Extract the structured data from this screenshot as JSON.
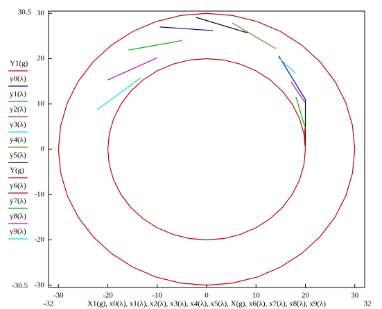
{
  "chart_data": {
    "type": "line",
    "x_label": "X1(g), x0(λ), x1(λ), x2(λ), x3(λ), x4(λ), x5(λ), X(g), x6(λ), x7(λ), x8(λ), x9(λ)",
    "xlim": [
      -32,
      32
    ],
    "ylim": [
      -30.5,
      30.5
    ],
    "xticks": [
      -30,
      -20,
      -10,
      0,
      10,
      20,
      30
    ],
    "yticks": [
      -30,
      -20,
      -10,
      0,
      10,
      20,
      30
    ],
    "legend": "left",
    "series": [
      {
        "name": "Y1(g)",
        "color": "#c00000",
        "x": [
          30,
          29.54,
          28.19,
          25.98,
          22.98,
          19.28,
          15,
          10.26,
          5.21,
          0,
          -5.21,
          -10.26,
          -15,
          -19.28,
          -22.98,
          -25.98,
          -28.19,
          -29.54,
          -30,
          -29.54,
          -28.19,
          -25.98,
          -22.98,
          -19.28,
          -15,
          -10.26,
          -5.21,
          0,
          5.21,
          10.26,
          15,
          19.28,
          22.98,
          25.98,
          28.19,
          29.54,
          30
        ],
        "values": [
          0,
          5.21,
          10.26,
          15,
          19.28,
          22.98,
          25.98,
          28.19,
          29.54,
          30,
          29.54,
          28.19,
          25.98,
          22.98,
          19.28,
          15,
          10.26,
          5.21,
          0,
          -5.21,
          -10.26,
          -15,
          -19.28,
          -22.98,
          -25.98,
          -28.19,
          -29.54,
          -30,
          -29.54,
          -28.19,
          -25.98,
          -22.98,
          -19.28,
          -15,
          -10.26,
          -5.21,
          0
        ]
      },
      {
        "name": "y0(λ)",
        "color": "#0000a0",
        "x": [
          -9.5,
          1.3,
          null,
          14.6,
          20
        ],
        "values": [
          27,
          26.2,
          null,
          20.6,
          11
        ]
      },
      {
        "name": "y1(λ)",
        "color": "#00b000",
        "x": [
          -15.8,
          -5
        ],
        "values": [
          21.9,
          24
        ]
      },
      {
        "name": "y2(λ)",
        "color": "#c000c0",
        "x": [
          -20,
          -10
        ],
        "values": [
          15.3,
          20.2
        ]
      },
      {
        "name": "y3(λ)",
        "color": "#00e0e0",
        "x": [
          -22.2,
          -13.3
        ],
        "values": [
          8.7,
          15.8
        ]
      },
      {
        "name": "y4(λ)",
        "color": "#808000",
        "x": [
          5.2,
          14
        ],
        "values": [
          27.9,
          22.2
        ]
      },
      {
        "name": "y5(λ)",
        "color": "#000000",
        "x": [
          -2.1,
          8.3,
          null,
          20,
          20
        ],
        "values": [
          29.1,
          25.7,
          null,
          11,
          0.8
        ]
      },
      {
        "name": "Y(g)",
        "color": "#c00000",
        "x": [
          20,
          19.7,
          18.79,
          17.32,
          15.32,
          12.86,
          10,
          6.84,
          3.47,
          0,
          -3.47,
          -6.84,
          -10,
          -12.86,
          -15.32,
          -17.32,
          -18.79,
          -19.7,
          -20,
          -19.7,
          -18.79,
          -17.32,
          -15.32,
          -12.86,
          -10,
          -6.84,
          -3.47,
          0,
          3.47,
          6.84,
          10,
          12.86,
          15.32,
          17.32,
          18.79,
          19.7,
          20
        ],
        "values": [
          0,
          3.47,
          6.84,
          10,
          12.86,
          15.32,
          17.32,
          18.79,
          19.7,
          20,
          19.7,
          18.79,
          17.32,
          15.32,
          12.86,
          10,
          6.84,
          3.47,
          0,
          -3.47,
          -6.84,
          -10,
          -12.86,
          -15.32,
          -17.32,
          -18.79,
          -19.7,
          -20,
          -19.7,
          -18.79,
          -17.32,
          -15.32,
          -12.86,
          -10,
          -6.84,
          -3.47,
          0
        ]
      },
      {
        "name": "y6(λ)",
        "color": "#c00000",
        "x": [
          19.9,
          19.9
        ],
        "values": [
          4.6,
          1
        ]
      },
      {
        "name": "y7(λ)",
        "color": "#00b000",
        "x": [
          18.1,
          20
        ],
        "values": [
          11.5,
          4.6
        ]
      },
      {
        "name": "y8(λ)",
        "color": "#c000c0",
        "x": [
          17.1,
          19.9
        ],
        "values": [
          14.9,
          10.4
        ]
      },
      {
        "name": "y9(λ)",
        "color": "#00e0e0",
        "x": [
          14.6,
          18
        ],
        "values": [
          20.2,
          16.8
        ]
      }
    ]
  }
}
